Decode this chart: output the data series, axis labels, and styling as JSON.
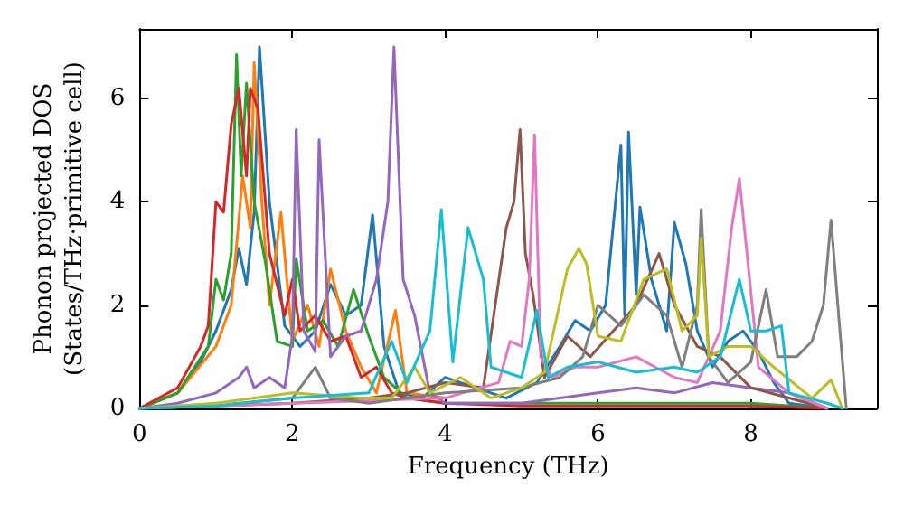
{
  "chart_data": {
    "type": "line",
    "xlabel": "Frequency (THz)",
    "ylabel": "Phonon projected DOS\n(States/THz·primitive cell)",
    "xlim": [
      0,
      9.65
    ],
    "ylim": [
      0,
      7.35
    ],
    "xticks": [
      0,
      2,
      4,
      6,
      8
    ],
    "yticks": [
      0,
      2,
      4,
      6
    ],
    "grid": false,
    "marker": "none",
    "line_style": "solid",
    "series": [
      {
        "color": "#1f77b4",
        "x": [
          0,
          0.5,
          0.8,
          1.0,
          1.2,
          1.3,
          1.4,
          1.5,
          1.57,
          1.7,
          1.9,
          2.1,
          2.3,
          2.5,
          2.7,
          2.9,
          3.05,
          3.2,
          3.4,
          3.7,
          4.0,
          4.4,
          4.8,
          5.2,
          5.5,
          5.7,
          5.9,
          6.1,
          6.3,
          6.35,
          6.4,
          6.5,
          6.55,
          6.7,
          6.9,
          7.0,
          7.15,
          7.3,
          7.5,
          7.7,
          7.9,
          8.1,
          8.3,
          8.5,
          9.0
        ],
        "values": [
          0,
          0.3,
          0.9,
          1.5,
          2.3,
          3.1,
          2.4,
          3.8,
          7.0,
          4.0,
          1.6,
          1.2,
          1.5,
          2.4,
          1.8,
          2.0,
          3.75,
          1.2,
          0.3,
          0.2,
          0.6,
          0.4,
          0.2,
          0.5,
          1.2,
          1.7,
          1.5,
          2.0,
          5.1,
          1.8,
          5.35,
          2.2,
          3.9,
          2.5,
          1.5,
          3.6,
          2.8,
          1.5,
          0.8,
          1.3,
          1.5,
          1.1,
          0.5,
          0.1,
          0
        ]
      },
      {
        "color": "#ff7f0e",
        "x": [
          0,
          0.5,
          1.0,
          1.2,
          1.35,
          1.45,
          1.5,
          1.6,
          1.7,
          1.85,
          2.0,
          2.2,
          2.35,
          2.5,
          2.7,
          2.9,
          3.1,
          3.35,
          3.5,
          4.0
        ],
        "values": [
          0,
          0.3,
          1.2,
          2.0,
          4.5,
          3.5,
          6.7,
          4.0,
          2.0,
          3.8,
          1.3,
          2.0,
          1.2,
          2.7,
          1.5,
          0.8,
          0.3,
          1.9,
          0.3,
          0.2
        ]
      },
      {
        "color": "#2ca02c",
        "x": [
          0,
          0.5,
          0.9,
          1.0,
          1.1,
          1.2,
          1.27,
          1.33,
          1.4,
          1.5,
          1.65,
          1.8,
          2.0,
          2.05,
          2.2,
          2.4,
          2.6,
          2.8,
          3.0,
          3.2,
          3.5,
          4.0,
          5.0,
          6.0,
          7.0,
          8.0,
          9.0
        ],
        "values": [
          0,
          0.3,
          1.2,
          2.5,
          2.1,
          3.0,
          6.85,
          4.5,
          6.3,
          4.0,
          2.8,
          1.3,
          1.2,
          2.9,
          1.5,
          1.7,
          1.2,
          2.3,
          1.4,
          0.6,
          0.2,
          0.1,
          0.1,
          0.1,
          0.1,
          0.1,
          0
        ]
      },
      {
        "color": "#d62728",
        "x": [
          0,
          0.5,
          0.8,
          0.9,
          1.0,
          1.1,
          1.2,
          1.3,
          1.4,
          1.45,
          1.55,
          1.7,
          1.9,
          2.0,
          2.1,
          2.3,
          2.5,
          2.7,
          2.9,
          3.1,
          3.3,
          3.5,
          4.0,
          5.0,
          6.0,
          7.0,
          8.0,
          9.0
        ],
        "values": [
          0,
          0.4,
          1.2,
          1.6,
          4.0,
          3.8,
          5.5,
          6.2,
          4.5,
          6.2,
          5.8,
          3.0,
          1.8,
          2.5,
          1.5,
          1.8,
          1.3,
          1.4,
          0.6,
          0.8,
          0.3,
          0.2,
          0.1,
          0.05,
          0.05,
          0.05,
          0.05,
          0
        ]
      },
      {
        "color": "#9467bd",
        "x": [
          0,
          0.5,
          1.0,
          1.3,
          1.4,
          1.5,
          1.7,
          1.9,
          2.0,
          2.05,
          2.15,
          2.3,
          2.35,
          2.5,
          2.7,
          2.9,
          3.1,
          3.25,
          3.33,
          3.45,
          3.6,
          3.8,
          4.0,
          5.0,
          6.0,
          6.5,
          7.0,
          7.5,
          8.0,
          8.5,
          9.0
        ],
        "values": [
          0,
          0.1,
          0.3,
          0.6,
          0.8,
          0.4,
          0.6,
          0.4,
          1.4,
          5.4,
          1.5,
          1.1,
          5.2,
          1.0,
          1.4,
          1.5,
          2.5,
          4.0,
          7.0,
          2.5,
          1.8,
          0.3,
          0.1,
          0.1,
          0.3,
          0.4,
          0.3,
          0.5,
          0.4,
          0.3,
          0
        ]
      },
      {
        "color": "#8c564b",
        "x": [
          0,
          1.0,
          2.0,
          3.0,
          3.5,
          4.0,
          4.5,
          4.8,
          4.9,
          4.98,
          5.05,
          5.15,
          5.3,
          5.6,
          5.9,
          6.2,
          6.5,
          6.8,
          7.0,
          7.3,
          7.6,
          8.0,
          8.5,
          9.0
        ],
        "values": [
          0,
          0.05,
          0.1,
          0.2,
          0.3,
          0.5,
          0.4,
          3.5,
          4.0,
          5.4,
          3.0,
          2.2,
          0.6,
          1.4,
          1.0,
          1.5,
          2.0,
          3.0,
          2.0,
          1.2,
          1.0,
          0.4,
          0.2,
          0
        ]
      },
      {
        "color": "#e377c2",
        "x": [
          0,
          1.0,
          2.0,
          3.0,
          4.0,
          4.7,
          4.85,
          5.0,
          5.1,
          5.17,
          5.25,
          5.4,
          5.7,
          6.0,
          6.5,
          7.0,
          7.3,
          7.6,
          7.75,
          7.85,
          7.95,
          8.1,
          8.5,
          9.0
        ],
        "values": [
          0,
          0.05,
          0.1,
          0.15,
          0.2,
          0.5,
          1.3,
          1.2,
          2.5,
          5.3,
          1.0,
          0.6,
          0.8,
          0.8,
          1.0,
          0.6,
          0.5,
          1.5,
          3.5,
          4.45,
          3.0,
          0.8,
          0.3,
          0
        ]
      },
      {
        "color": "#7f7f7f",
        "x": [
          0,
          1.0,
          2.0,
          2.3,
          2.5,
          3.0,
          4.0,
          5.0,
          5.5,
          5.8,
          6.0,
          6.3,
          6.6,
          6.9,
          7.1,
          7.3,
          7.35,
          7.45,
          7.7,
          8.0,
          8.2,
          8.35,
          8.6,
          8.8,
          8.95,
          9.05,
          9.15,
          9.25
        ],
        "values": [
          0,
          0.05,
          0.2,
          0.8,
          0.2,
          0.1,
          0.3,
          0.4,
          0.6,
          1.0,
          2.0,
          1.6,
          2.2,
          1.8,
          0.8,
          2.0,
          3.85,
          1.0,
          0.5,
          0.9,
          2.3,
          1.0,
          1.0,
          1.3,
          2.0,
          3.65,
          1.8,
          0
        ]
      },
      {
        "color": "#bcbd22",
        "x": [
          0,
          1.0,
          2.0,
          2.9,
          3.3,
          3.6,
          3.8,
          4.2,
          4.6,
          5.0,
          5.3,
          5.6,
          5.75,
          5.85,
          6.0,
          6.3,
          6.6,
          6.9,
          7.1,
          7.3,
          7.35,
          7.45,
          7.7,
          8.0,
          8.3,
          8.8,
          9.05,
          9.2
        ],
        "values": [
          0,
          0.1,
          0.3,
          0.2,
          0.2,
          0.8,
          0.3,
          0.6,
          0.2,
          0.4,
          0.7,
          2.7,
          3.1,
          2.8,
          1.4,
          1.3,
          2.5,
          2.7,
          1.5,
          1.8,
          3.3,
          1.0,
          1.2,
          1.2,
          0.8,
          0.2,
          0.55,
          0
        ]
      },
      {
        "color": "#17becf",
        "x": [
          0,
          1.0,
          2.0,
          3.0,
          3.3,
          3.5,
          3.8,
          3.95,
          4.1,
          4.3,
          4.5,
          4.6,
          5.0,
          5.2,
          5.35,
          5.6,
          6.0,
          6.5,
          7.0,
          7.3,
          7.6,
          7.85,
          8.0,
          8.2,
          8.4,
          8.5,
          9.0,
          9.2
        ],
        "values": [
          0,
          0.05,
          0.2,
          0.3,
          1.3,
          0.5,
          1.5,
          3.85,
          0.9,
          3.5,
          2.5,
          0.8,
          0.6,
          1.9,
          0.6,
          0.8,
          0.9,
          0.7,
          0.8,
          0.7,
          1.0,
          2.5,
          1.5,
          1.5,
          1.6,
          0.3,
          0.1,
          0
        ]
      }
    ]
  }
}
